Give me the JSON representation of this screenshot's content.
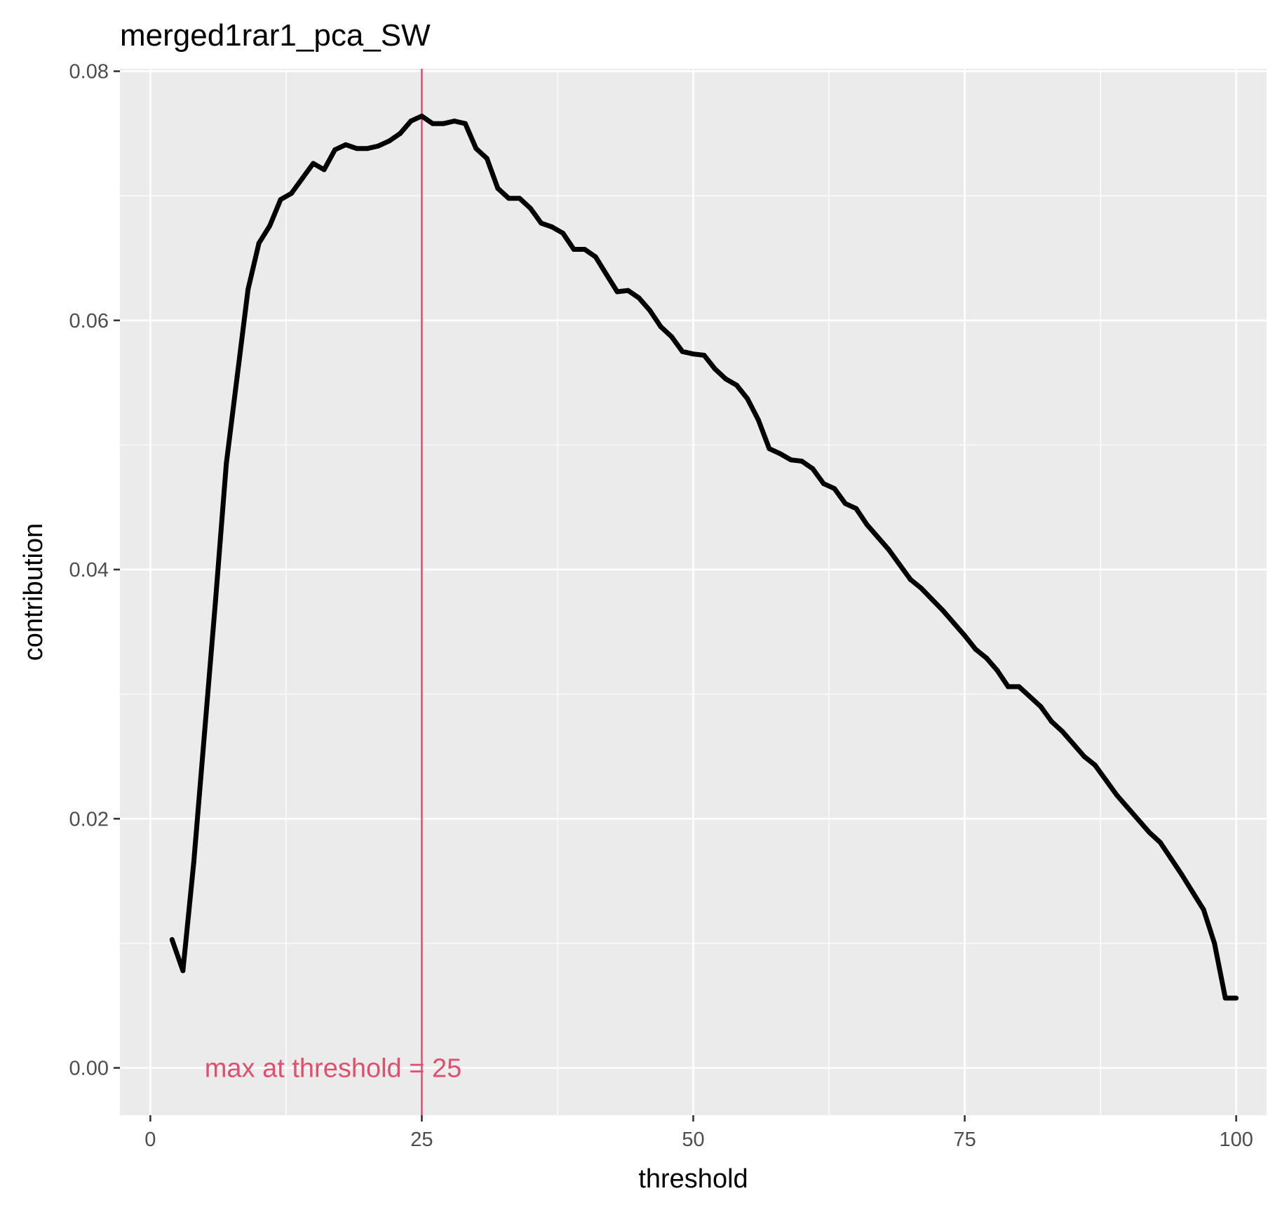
{
  "chart_data": {
    "type": "line",
    "title": "merged1rar1_pca_SW",
    "xlabel": "threshold",
    "ylabel": "contribution",
    "xlim": [
      -2.8,
      102.8
    ],
    "ylim": [
      -0.0038,
      0.0802
    ],
    "x_ticks": [
      0,
      25,
      50,
      75,
      100
    ],
    "x_tick_labels": [
      "0",
      "25",
      "50",
      "75",
      "100"
    ],
    "y_ticks": [
      0,
      0.02,
      0.04,
      0.06,
      0.08
    ],
    "y_tick_labels": [
      "0.00",
      "0.02",
      "0.04",
      "0.06",
      "0.08"
    ],
    "grid": true,
    "background": "#ebebeb",
    "grid_color": "#ffffff",
    "line_color": "#000000",
    "series": [
      {
        "x": [
          2,
          3,
          4,
          5,
          6,
          7,
          8,
          9,
          10,
          11,
          12,
          13,
          14,
          15,
          16,
          17,
          18,
          19,
          20,
          21,
          22,
          23,
          24,
          25,
          26,
          27,
          28,
          29,
          30,
          31,
          32,
          33,
          34,
          35,
          36,
          37,
          38,
          39,
          40,
          41,
          42,
          43,
          44,
          45,
          46,
          47,
          48,
          49,
          50,
          51,
          52,
          53,
          54,
          55,
          56,
          57,
          58,
          59,
          60,
          61,
          62,
          63,
          64,
          65,
          66,
          67,
          68,
          69,
          70,
          71,
          72,
          73,
          74,
          75,
          76,
          77,
          78,
          79,
          80,
          81,
          82,
          83,
          84,
          85,
          86,
          87,
          88,
          89,
          90,
          91,
          92,
          93,
          94,
          95,
          96,
          97,
          98,
          99,
          100
        ],
        "y": [
          0.0103,
          0.0078,
          0.0165,
          0.027,
          0.0375,
          0.0485,
          0.0555,
          0.0625,
          0.0662,
          0.0676,
          0.0697,
          0.0702,
          0.0714,
          0.0726,
          0.0721,
          0.0737,
          0.0741,
          0.0738,
          0.0738,
          0.074,
          0.0744,
          0.075,
          0.076,
          0.0764,
          0.0758,
          0.0758,
          0.076,
          0.0758,
          0.0738,
          0.073,
          0.0706,
          0.0698,
          0.0698,
          0.069,
          0.0678,
          0.0675,
          0.067,
          0.0657,
          0.0657,
          0.0651,
          0.0637,
          0.0623,
          0.0624,
          0.0618,
          0.0608,
          0.0595,
          0.0587,
          0.0575,
          0.0573,
          0.0572,
          0.0561,
          0.0553,
          0.0548,
          0.0537,
          0.052,
          0.0497,
          0.0493,
          0.0488,
          0.0487,
          0.0481,
          0.0469,
          0.0465,
          0.0453,
          0.0449,
          0.0436,
          0.0426,
          0.0416,
          0.0404,
          0.0392,
          0.0385,
          0.0376,
          0.0367,
          0.0357,
          0.0347,
          0.0336,
          0.0329,
          0.0319,
          0.0306,
          0.0306,
          0.0298,
          0.029,
          0.0278,
          0.027,
          0.026,
          0.025,
          0.0243,
          0.0231,
          0.0219,
          0.0209,
          0.0199,
          0.0189,
          0.0181,
          0.0168,
          0.0155,
          0.0141,
          0.0127,
          0.01,
          0.0056,
          0.0056
        ]
      }
    ],
    "vline": {
      "x": 25,
      "color": "#e0506e"
    },
    "annotation": {
      "text": "max at threshold =  25",
      "x": 5,
      "y": 0,
      "color": "#e0506e"
    }
  }
}
